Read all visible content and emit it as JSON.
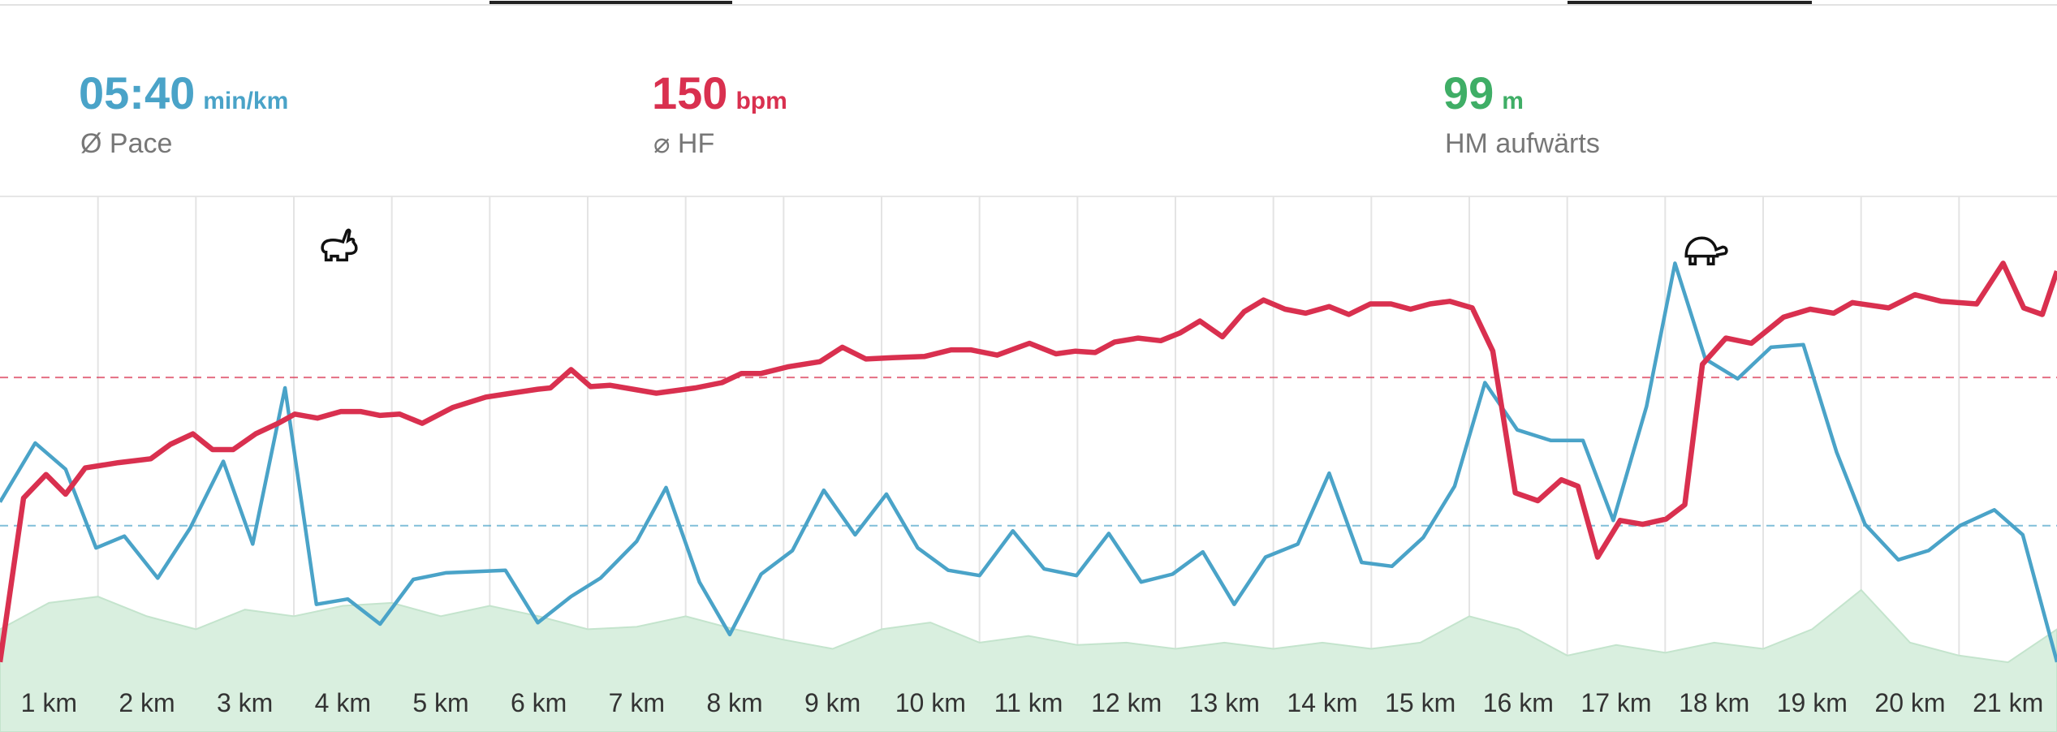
{
  "stats": [
    {
      "value": "05:40",
      "unit": "min/km",
      "label": "Ø Pace",
      "color": "#4aa3c8"
    },
    {
      "value": 150,
      "unit": "bpm",
      "label": "⌀ HF",
      "color": "#d9304f"
    },
    {
      "value": 99,
      "unit": "m",
      "label": "HM aufwärts",
      "color": "#3fae66"
    }
  ],
  "chart_data": {
    "type": "line",
    "categories": [
      "1 km",
      "2 km",
      "3 km",
      "4 km",
      "5 km",
      "6 km",
      "7 km",
      "8 km",
      "9 km",
      "10 km",
      "11 km",
      "12 km",
      "13 km",
      "14 km",
      "15 km",
      "16 km",
      "17 km",
      "18 km",
      "19 km",
      "20 km",
      "21 km"
    ],
    "xlim": [
      0,
      21
    ],
    "series": [
      {
        "type": "area",
        "color": "#d9efdf",
        "ylim": [
          0,
          100
        ],
        "x": [
          0,
          0.5,
          1,
          1.5,
          2,
          2.5,
          3,
          3.5,
          4,
          4.5,
          5,
          5.5,
          6,
          6.5,
          7,
          7.5,
          8,
          8.5,
          9,
          9.5,
          10,
          10.5,
          11,
          11.5,
          12,
          12.5,
          13,
          13.5,
          14,
          14.5,
          15,
          15.5,
          16,
          16.5,
          17,
          17.5,
          18,
          18.5,
          19,
          19.5,
          20,
          20.5,
          21
        ],
        "values": [
          9.6,
          15.1,
          16.4,
          12.3,
          9.6,
          13.7,
          12.3,
          14.5,
          15.1,
          12.3,
          14.5,
          12.3,
          9.6,
          10.1,
          12.3,
          9.6,
          7.4,
          5.5,
          9.6,
          11.0,
          6.8,
          8.2,
          6.3,
          6.8,
          5.5,
          6.8,
          5.5,
          6.8,
          5.5,
          6.8,
          12.3,
          9.6,
          4.1,
          6.3,
          4.7,
          6.8,
          5.5,
          9.6,
          17.8,
          6.8,
          4.1,
          2.7,
          9.6
        ]
      },
      {
        "type": "line",
        "color": "#4aa3c8",
        "ylim": [
          283,
          465.5
        ],
        "average": 340,
        "x": [
          0,
          0.36,
          0.67,
          0.98,
          1.27,
          1.61,
          1.94,
          2.28,
          2.58,
          2.91,
          3.23,
          3.55,
          3.88,
          4.22,
          4.55,
          5.16,
          5.49,
          5.83,
          6.13,
          6.5,
          6.8,
          7.14,
          7.45,
          7.77,
          8.09,
          8.41,
          8.73,
          9.05,
          9.37,
          9.68,
          10,
          10.34,
          10.66,
          10.99,
          11.32,
          11.65,
          11.97,
          12.28,
          12.6,
          12.92,
          13.25,
          13.57,
          13.9,
          14.21,
          14.53,
          14.85,
          15.16,
          15.49,
          15.83,
          16.16,
          16.47,
          16.81,
          17.1,
          17.41,
          17.74,
          18.08,
          18.41,
          18.75,
          19.04,
          19.38,
          19.69,
          20.01,
          20.36,
          20.65,
          21
        ],
        "values": [
          349,
          371.5,
          361.5,
          331.5,
          336,
          320,
          339,
          364.5,
          333,
          392.5,
          310,
          312,
          302.5,
          319.5,
          322,
          323,
          303,
          313,
          320,
          334,
          354.5,
          318.5,
          298.5,
          321.5,
          330.5,
          353.5,
          336.5,
          352,
          331.5,
          323,
          321,
          338,
          323.5,
          321,
          337,
          318.5,
          321.5,
          330,
          310,
          328,
          333,
          360,
          326,
          324.5,
          335.5,
          355,
          394.5,
          376.5,
          372.5,
          372.5,
          342,
          385.5,
          440,
          403.5,
          396,
          408,
          409,
          368,
          340.5,
          327,
          330.5,
          340,
          346,
          336.5,
          288
        ]
      },
      {
        "type": "line",
        "color": "#d9304f",
        "ylim": [
          104.6,
          177.6
        ],
        "x": [
          0,
          0.24,
          0.47,
          0.67,
          0.87,
          1.21,
          1.54,
          1.74,
          1.97,
          2.17,
          2.38,
          2.61,
          2.84,
          3.01,
          3.24,
          3.48,
          3.68,
          3.88,
          4.08,
          4.31,
          4.62,
          4.96,
          5.22,
          5.49,
          5.62,
          5.83,
          6.03,
          6.23,
          6.7,
          7.1,
          7.37,
          7.57,
          7.77,
          8.04,
          8.37,
          8.6,
          8.84,
          9.11,
          9.44,
          9.71,
          9.91,
          10.18,
          10.51,
          10.78,
          10.98,
          11.18,
          11.38,
          11.62,
          11.85,
          12.05,
          12.25,
          12.48,
          12.7,
          12.9,
          13.12,
          13.33,
          13.57,
          13.77,
          13.99,
          14.2,
          14.4,
          14.6,
          14.8,
          15.03,
          15.24,
          15.47,
          15.7,
          15.94,
          16.11,
          16.31,
          16.54,
          16.77,
          17.01,
          17.2,
          17.38,
          17.62,
          17.88,
          18.21,
          18.48,
          18.72,
          18.91,
          19.28,
          19.55,
          19.82,
          20.18,
          20.45,
          20.66,
          20.85,
          21
        ],
        "values": [
          106.6,
          131.6,
          135.2,
          132.2,
          136.2,
          137,
          137.6,
          139.8,
          141.4,
          139,
          139,
          141.4,
          143,
          144.4,
          143.8,
          144.8,
          144.8,
          144.2,
          144.4,
          143,
          145.4,
          147,
          147.6,
          148.2,
          148.4,
          151.2,
          148.6,
          148.8,
          147.6,
          148.4,
          149.2,
          150.6,
          150.6,
          151.6,
          152.4,
          154.6,
          152.8,
          153,
          153.2,
          154.2,
          154.2,
          153.4,
          155.2,
          153.6,
          154,
          153.8,
          155.4,
          156,
          155.6,
          156.8,
          158.6,
          156.2,
          160,
          161.8,
          160.4,
          159.8,
          160.8,
          159.6,
          161.2,
          161.2,
          160.4,
          161.2,
          161.6,
          160.6,
          154,
          132.4,
          131.2,
          134.4,
          133.4,
          122.6,
          128.2,
          127.6,
          128.4,
          130.6,
          152,
          156,
          155.2,
          159.2,
          160.4,
          159.8,
          161.4,
          160.6,
          162.6,
          161.6,
          161.2,
          167.4,
          160.6,
          159.6,
          166.2
        ]
      }
    ]
  }
}
